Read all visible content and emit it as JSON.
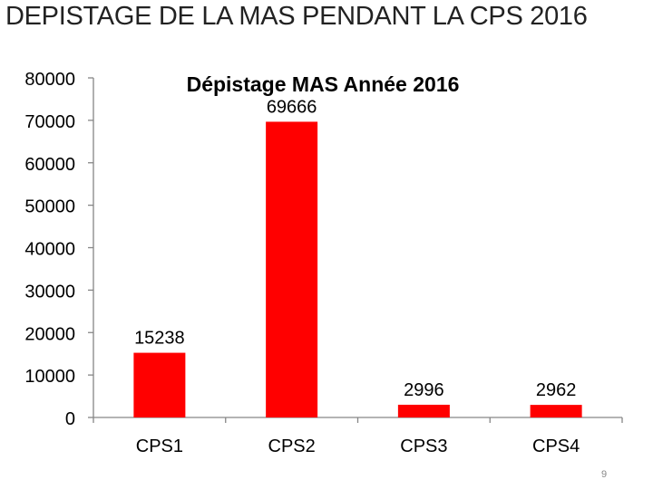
{
  "slide": {
    "title": "DEPISTAGE DE LA MAS PENDANT LA  CPS 2016",
    "page_number": "9"
  },
  "chart_data": {
    "type": "bar",
    "title": "Dépistage MAS Année 2016",
    "categories": [
      "CPS1",
      "CPS2",
      "CPS3",
      "CPS4"
    ],
    "values": [
      15238,
      69666,
      2996,
      2962
    ],
    "data_labels": [
      "15238",
      "69666",
      "2996",
      "2962"
    ],
    "ylim": [
      0,
      80000
    ],
    "yticks": [
      "0",
      "10000",
      "20000",
      "30000",
      "40000",
      "50000",
      "60000",
      "70000",
      "80000"
    ],
    "xlabel": "",
    "ylabel": "",
    "grid": false,
    "legend": "none",
    "bar_color": "#FF0000",
    "axis_color": "#868686"
  }
}
